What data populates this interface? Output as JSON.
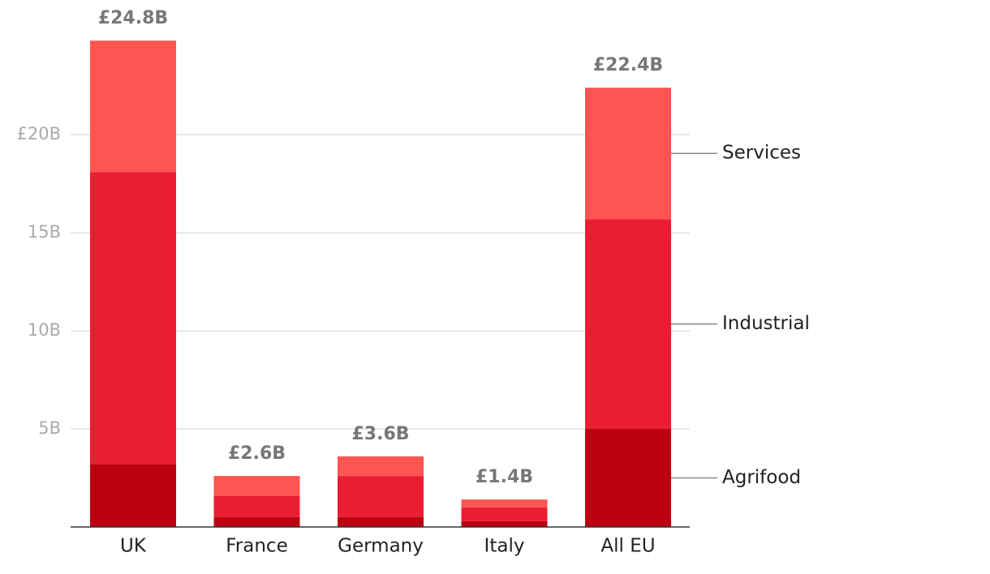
{
  "chart_data": {
    "type": "stacked_bar",
    "categories": [
      "UK",
      "France",
      "Germany",
      "Italy",
      "All EU"
    ],
    "series": [
      {
        "name": "Agrifood",
        "color": "#bb0011",
        "values": [
          3.2,
          0.5,
          0.5,
          0.3,
          5.0
        ]
      },
      {
        "name": "Industrial",
        "color": "#ea1d32",
        "values": [
          14.9,
          1.1,
          2.1,
          0.7,
          10.7
        ]
      },
      {
        "name": "Services",
        "color": "#ff5552",
        "values": [
          6.7,
          1.0,
          1.0,
          0.4,
          6.7
        ]
      }
    ],
    "totals": {
      "values": [
        24.8,
        2.6,
        3.6,
        1.4,
        22.4
      ],
      "value_labels": [
        "£24.8B",
        "£2.6B",
        "£3.6B",
        "£1.4B",
        "£22.4B"
      ]
    },
    "ylim": [
      0,
      26.5
    ],
    "yticks": [
      {
        "value": 5,
        "label": "5B"
      },
      {
        "value": 10,
        "label": "10B"
      },
      {
        "value": 15,
        "label": "15B"
      },
      {
        "value": 20,
        "label": "£20B"
      }
    ],
    "grid": true
  }
}
